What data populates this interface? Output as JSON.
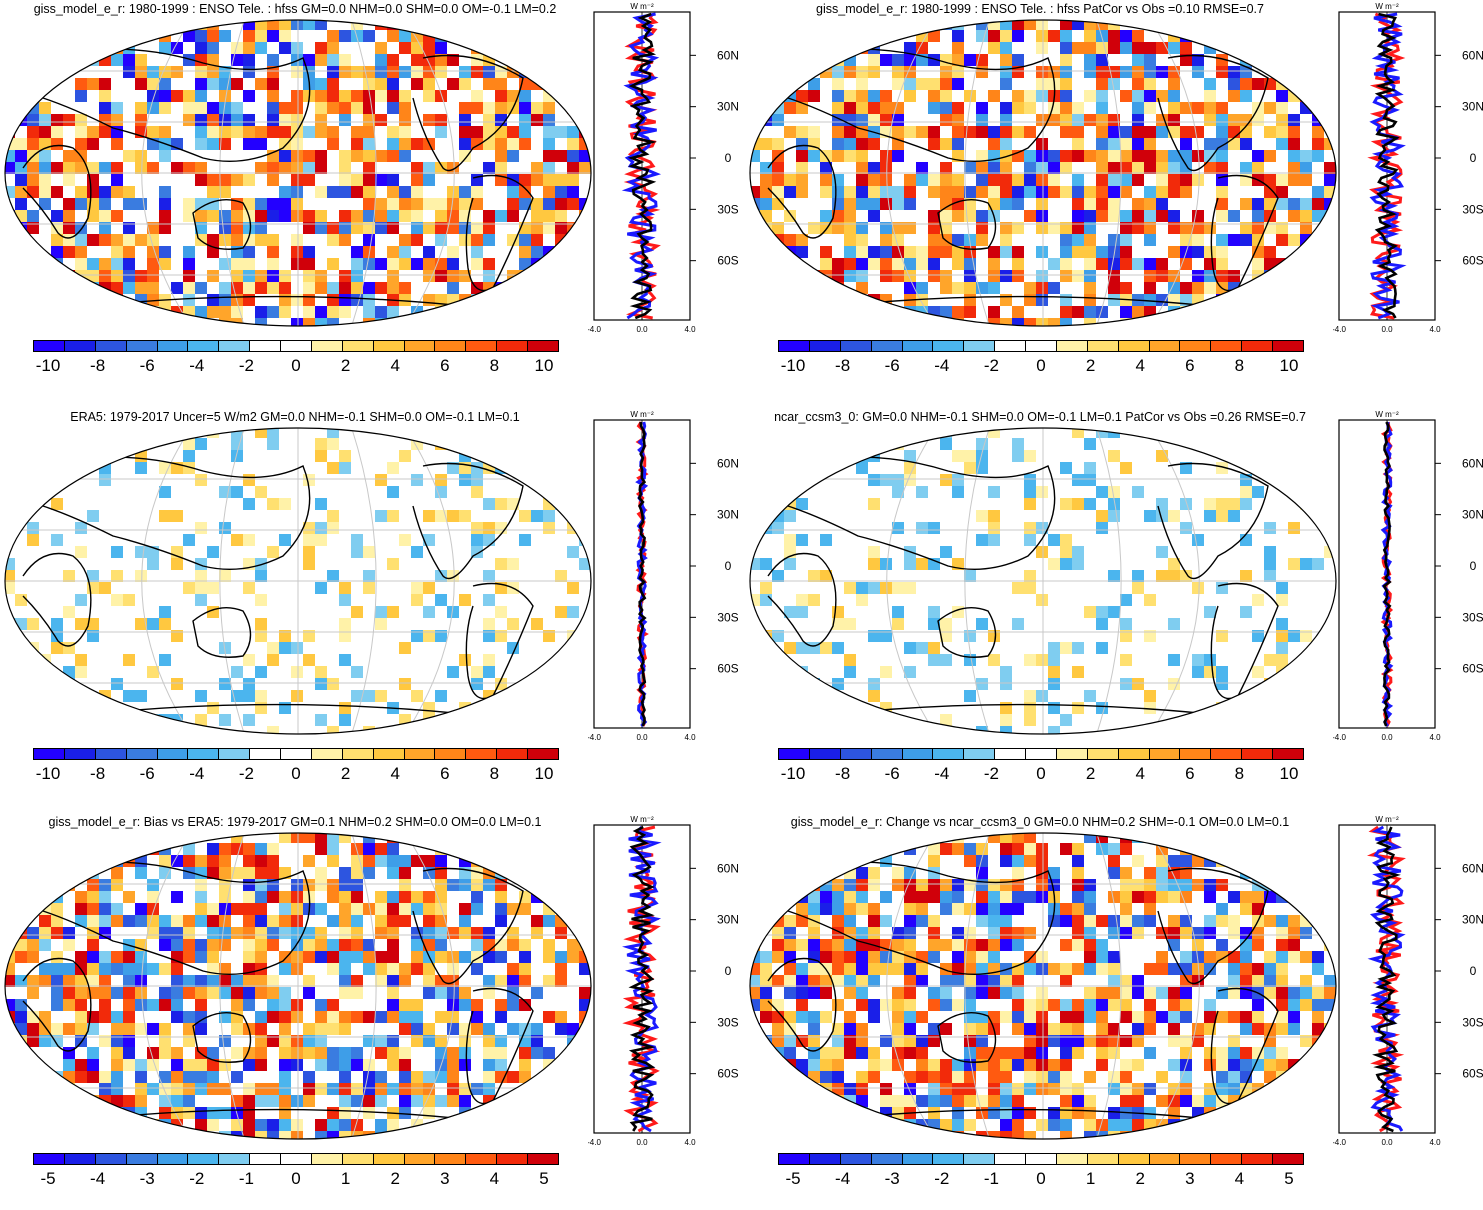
{
  "colors": {
    "palette": [
      "#2300ff",
      "#1a1fe8",
      "#2d55e0",
      "#3a7ce0",
      "#3e9ee8",
      "#4bb5ee",
      "#7fcdf0",
      "#ffffff",
      "#ffffff",
      "#fff2a8",
      "#ffe070",
      "#ffc840",
      "#ffa52a",
      "#ff8519",
      "#ff5a10",
      "#f22a0a",
      "#d0000a"
    ]
  },
  "profile_axis": {
    "unit_label": "W m⁻²",
    "y_ticks": [
      "60N",
      "30N",
      "0",
      "30S",
      "60S"
    ],
    "x_ticks": [
      "-4.0",
      "0.0",
      "4.0"
    ]
  },
  "panels": [
    {
      "id": "p1",
      "title": "giss_model_e_r: 1980-1999 : ENSO Tele. : hfss GM=0.0 NHM=0.0 SHM=0.0 OM=-0.1 LM=0.2",
      "colorbar_labels": [
        "-10",
        "-8",
        "-6",
        "-4",
        "-2",
        "0",
        "2",
        "4",
        "6",
        "8",
        "10"
      ],
      "field_style": "strong",
      "profile_x_ticks": [
        "-4.0",
        "0.0",
        "4.0"
      ]
    },
    {
      "id": "p2",
      "title": "giss_model_e_r: 1980-1999 : ENSO Tele. : hfss PatCor vs Obs =0.10 RMSE=0.7",
      "colorbar_labels": [
        "-10",
        "-8",
        "-6",
        "-4",
        "-2",
        "0",
        "2",
        "4",
        "6",
        "8",
        "10"
      ],
      "field_style": "strong",
      "profile_x_ticks": [
        "-4.0",
        "0.0",
        "4.0"
      ]
    },
    {
      "id": "p3",
      "title": "ERA5: 1979-2017 Uncer=5 W/m2 GM=0.0 NHM=-0.1 SHM=0.0 OM=-0.1 LM=0.1",
      "colorbar_labels": [
        "-10",
        "-8",
        "-6",
        "-4",
        "-2",
        "0",
        "2",
        "4",
        "6",
        "8",
        "10"
      ],
      "field_style": "weak",
      "profile_x_ticks": [
        "-4.0",
        "0.0",
        "4.0"
      ]
    },
    {
      "id": "p4",
      "title": "ncar_ccsm3_0: GM=0.0 NHM=-0.1 SHM=0.0 OM=-0.1 LM=0.1 PatCor vs Obs =0.26 RMSE=0.7",
      "colorbar_labels": [
        "-10",
        "-8",
        "-6",
        "-4",
        "-2",
        "0",
        "2",
        "4",
        "6",
        "8",
        "10"
      ],
      "field_style": "weak",
      "profile_x_ticks": [
        "-4.0",
        "0.0",
        "4.0"
      ]
    },
    {
      "id": "p5",
      "title": "giss_model_e_r: Bias vs ERA5: 1979-2017 GM=0.1 NHM=0.2 SHM=0.0 OM=0.0 LM=0.1",
      "colorbar_labels": [
        "-5",
        "-4",
        "-3",
        "-2",
        "-1",
        "0",
        "1",
        "2",
        "3",
        "4",
        "5"
      ],
      "field_style": "strong",
      "profile_x_ticks": [
        "-4.0",
        "0.0",
        "4.0"
      ]
    },
    {
      "id": "p6",
      "title": "giss_model_e_r: Change vs ncar_ccsm3_0 GM=0.0 NHM=0.2 SHM=-0.1 OM=0.0 LM=0.1",
      "colorbar_labels": [
        "-5",
        "-4",
        "-3",
        "-2",
        "-1",
        "0",
        "1",
        "2",
        "3",
        "4",
        "5"
      ],
      "field_style": "strong",
      "profile_x_ticks": [
        "-4.0",
        "0.0",
        "4.0"
      ]
    }
  ]
}
